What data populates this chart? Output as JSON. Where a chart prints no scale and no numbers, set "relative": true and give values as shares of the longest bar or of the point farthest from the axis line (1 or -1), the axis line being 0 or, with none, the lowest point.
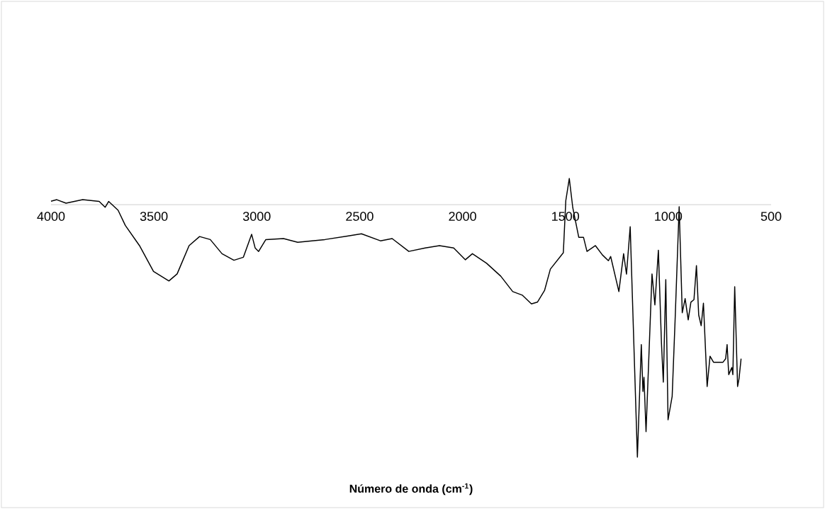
{
  "chart_data": {
    "type": "line",
    "xlabel": "**Número de onda (cm$^{-1}$)**",
    "relative": true,
    "xlim": [
      4000,
      500
    ],
    "xticks": [
      4000,
      3500,
      3000,
      2500,
      2000,
      1500,
      1000,
      500
    ],
    "color": "#000000",
    "marker": "none",
    "line_style": "solid",
    "x": [
      4000,
      3972,
      3927,
      3846,
      3766,
      3737,
      3720,
      3674,
      3639,
      3570,
      3502,
      3427,
      3387,
      3329,
      3278,
      3226,
      3169,
      3111,
      3065,
      3025,
      3008,
      2991,
      2956,
      2870,
      2801,
      2732,
      2669,
      2560,
      2491,
      2399,
      2342,
      2261,
      2181,
      2112,
      2043,
      1986,
      1952,
      1883,
      1814,
      1756,
      1710,
      1665,
      1636,
      1601,
      1573,
      1510,
      1498,
      1481,
      1464,
      1435,
      1412,
      1395,
      1354,
      1320,
      1291,
      1280,
      1240,
      1217,
      1203,
      1185,
      1150,
      1131,
      1123,
      1118,
      1108,
      1079,
      1065,
      1048,
      1033,
      1024,
      1012,
      1001,
      981,
      966,
      947,
      932,
      918,
      903,
      890,
      875,
      863,
      852,
      840,
      829,
      811,
      797,
      780,
      734,
      721,
      714,
      706,
      691,
      686,
      677,
      663,
      656,
      646
    ],
    "values": [
      0.014,
      0.02,
      0.006,
      0.02,
      0.013,
      -0.01,
      0.013,
      -0.022,
      -0.082,
      -0.162,
      -0.264,
      -0.302,
      -0.274,
      -0.162,
      -0.126,
      -0.138,
      -0.194,
      -0.22,
      -0.208,
      -0.117,
      -0.171,
      -0.185,
      -0.138,
      -0.134,
      -0.149,
      -0.143,
      -0.138,
      -0.124,
      -0.115,
      -0.143,
      -0.134,
      -0.185,
      -0.171,
      -0.162,
      -0.171,
      -0.218,
      -0.194,
      -0.232,
      -0.283,
      -0.344,
      -0.358,
      -0.393,
      -0.386,
      -0.339,
      -0.255,
      -0.19,
      0.016,
      0.104,
      -0.012,
      -0.129,
      -0.129,
      -0.185,
      -0.162,
      -0.199,
      -0.222,
      -0.205,
      -0.344,
      -0.194,
      -0.275,
      -0.087,
      -1,
      -0.554,
      -0.74,
      -0.684,
      -0.899,
      -0.274,
      -0.397,
      -0.18,
      -0.549,
      -0.703,
      -0.297,
      -0.852,
      -0.759,
      -0.442,
      -0.008,
      -0.428,
      -0.372,
      -0.456,
      -0.386,
      -0.376,
      -0.241,
      -0.437,
      -0.479,
      -0.39,
      -0.72,
      -0.6,
      -0.624,
      -0.624,
      -0.61,
      -0.554,
      -0.673,
      -0.645,
      -0.673,
      -0.325,
      -0.72,
      -0.689,
      -0.61
    ]
  }
}
